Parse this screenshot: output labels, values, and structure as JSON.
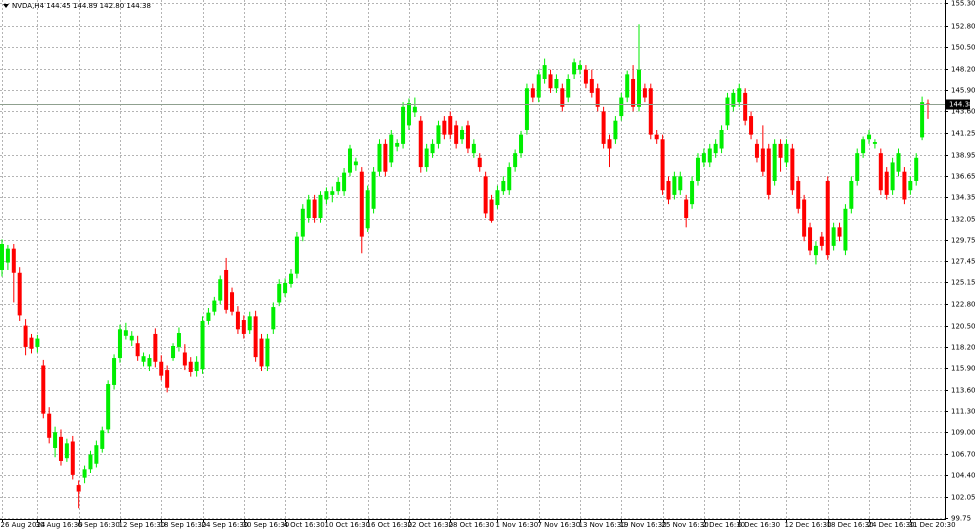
{
  "chart_data": {
    "type": "candlestick",
    "title": "NVDA,H4 144.45 144.89 142.80 144.38",
    "up_color": "#00ee00",
    "down_color": "#ff0000",
    "grid": true,
    "last_price": {
      "value": 144.38,
      "label": "144.38"
    },
    "ylim": [
      99.64,
      155.62
    ],
    "yticks": [
      {
        "value": 155.3,
        "label": "155.30"
      },
      {
        "value": 152.8,
        "label": "152.80"
      },
      {
        "value": 150.5,
        "label": "150.50"
      },
      {
        "value": 148.2,
        "label": "148.20"
      },
      {
        "value": 145.9,
        "label": "145.90"
      },
      {
        "value": 143.6,
        "label": "143.60"
      },
      141.25,
      {
        "value": 138.95,
        "label": "138.95"
      },
      136.65,
      134.35,
      {
        "value": 132.05,
        "label": "132.05"
      },
      129.75,
      127.45,
      125.15,
      {
        "value": 122.8,
        "label": "122.80"
      },
      {
        "value": 120.5,
        "label": "120.50"
      },
      {
        "value": 118.2,
        "label": "118.20"
      },
      {
        "value": 115.9,
        "label": "115.90"
      },
      {
        "value": 113.6,
        "label": "113.60"
      },
      {
        "value": 111.3,
        "label": "111.30"
      },
      {
        "value": 109,
        "label": "109.00"
      },
      {
        "value": 106.7,
        "label": "106.70"
      },
      {
        "value": 104.4,
        "label": "104.40"
      },
      {
        "value": 102.05,
        "label": "102.05"
      },
      99.75
    ],
    "categories": [
      "26 Aug 2024",
      null,
      null,
      null,
      null,
      null,
      "30 Aug 16:30",
      null,
      null,
      null,
      null,
      null,
      null,
      "6 Sep 16:30",
      null,
      null,
      null,
      null,
      null,
      null,
      "12 Sep 16:30",
      null,
      null,
      null,
      null,
      null,
      null,
      "18 Sep 16:30",
      null,
      null,
      null,
      null,
      null,
      null,
      "24 Sep 16:30",
      null,
      null,
      null,
      null,
      null,
      null,
      "30 Sep 16:30",
      null,
      null,
      null,
      null,
      null,
      null,
      "4 Oct 16:30",
      null,
      null,
      null,
      null,
      null,
      null,
      "10 Oct 16:30",
      null,
      null,
      null,
      null,
      null,
      null,
      "16 Oct 16:30",
      null,
      null,
      null,
      null,
      null,
      null,
      "22 Oct 16:30",
      null,
      null,
      null,
      null,
      null,
      null,
      "28 Oct 16:30",
      null,
      null,
      null,
      null,
      null,
      null,
      null,
      "1 Nov 16:30",
      null,
      null,
      null,
      null,
      null,
      null,
      "7 Nov 16:30",
      null,
      null,
      null,
      null,
      null,
      null,
      "13 Nov 16:30",
      null,
      null,
      null,
      null,
      null,
      null,
      "19 Nov 16:30",
      null,
      null,
      null,
      null,
      null,
      null,
      "25 Nov 16:30",
      null,
      null,
      null,
      null,
      null,
      null,
      "2 Dec 16:30",
      null,
      null,
      null,
      null,
      null,
      "6 Dec 16:30",
      null,
      null,
      null,
      null,
      null,
      null,
      null,
      "12 Dec 16:30",
      null,
      null,
      null,
      null,
      null,
      null,
      "18 Dec 16:30",
      null,
      null,
      null,
      null,
      null,
      null,
      "24 Dec 16:30",
      null,
      null,
      null,
      null,
      null,
      null,
      "31 Dec 20:30",
      null,
      null,
      null
    ],
    "open": [
      126.5,
      127.3,
      128.8,
      126.2,
      120.5,
      119.2,
      118.2,
      116.2,
      111.0,
      107.3,
      108.5,
      106.2,
      108.0,
      103.3,
      104.1,
      105.0,
      105.6,
      107.2,
      109.3,
      114.1,
      117.0,
      119.4,
      118.9,
      118.6,
      116.6,
      116.1,
      119.6,
      116.6,
      115.7,
      117.0,
      118.2,
      117.6,
      116.6,
      115.6,
      115.8,
      121.0,
      122.0,
      123.2,
      126.5,
      124.1,
      122.0,
      121.1,
      120.0,
      121.5,
      119.1,
      116.1,
      120.1,
      123.0,
      124.0,
      125.0,
      126.1,
      130.1,
      132.1,
      134.1,
      132.1,
      134.1,
      134.6,
      135.0,
      135.0,
      137.0,
      137.8,
      137.1,
      131.0,
      133.1,
      137.1,
      140.1,
      138.1,
      139.8,
      140.1,
      142.1,
      143.5,
      142.6,
      137.6,
      139.1,
      140.1,
      142.6,
      143.1,
      142.1,
      140.6,
      142.1,
      139.1,
      138.6,
      136.6,
      134.1,
      133.5,
      135.0,
      135.1,
      137.6,
      139.1,
      141.6,
      146.1,
      145.1,
      147.1,
      147.6,
      146.1,
      146.1,
      145.1,
      147.6,
      148.1,
      148.1,
      147.1,
      146.1,
      143.6,
      140.6,
      140.6,
      143.1,
      145.1,
      147.1,
      144.1,
      146.1,
      146.1,
      141.1,
      140.6,
      136.1,
      134.6,
      135.1,
      134.1,
      133.6,
      136.1,
      138.1,
      138.1,
      139.1,
      139.6,
      142.1,
      144.1,
      144.6,
      145.6,
      143.1,
      140.1,
      139.6,
      139.6,
      136.1,
      140.1,
      138.1,
      139.6,
      136.1,
      134.1,
      131.1,
      128.1,
      130.1,
      136.1,
      129.1,
      131.1,
      128.6,
      133.1,
      136.1,
      139.1,
      140.6,
      140.1,
      139.1,
      137.1,
      135.1,
      137.1,
      137.1,
      135.1,
      136.1,
      140.8,
      144.45
    ],
    "high": [
      129.8,
      129.2,
      129.3,
      126.8,
      121.2,
      119.6,
      119.5,
      116.8,
      111.7,
      109.6,
      109.3,
      108.3,
      108.6,
      103.8,
      105.4,
      107.0,
      108.1,
      109.6,
      114.6,
      117.4,
      120.6,
      120.8,
      119.9,
      119.4,
      117.6,
      117.4,
      120.2,
      117.3,
      116.2,
      118.6,
      120.3,
      118.5,
      117.1,
      117.2,
      121.5,
      122.4,
      123.6,
      125.9,
      127.8,
      124.6,
      122.6,
      121.6,
      122.0,
      122.1,
      119.6,
      119.6,
      123.0,
      125.5,
      125.6,
      126.6,
      130.6,
      133.6,
      134.6,
      134.6,
      135.0,
      135.4,
      135.5,
      136.5,
      137.5,
      140.0,
      138.6,
      137.6,
      135.6,
      137.6,
      140.6,
      140.6,
      141.6,
      140.6,
      144.6,
      145.0,
      145.1,
      143.1,
      140.1,
      140.6,
      142.6,
      143.1,
      143.6,
      142.6,
      142.0,
      142.6,
      140.6,
      139.1,
      137.1,
      134.6,
      135.6,
      136.6,
      138.1,
      139.5,
      141.5,
      146.6,
      146.6,
      148.1,
      149.3,
      148.1,
      147.6,
      146.6,
      147.6,
      149.3,
      149.1,
      148.6,
      148.1,
      146.6,
      144.1,
      141.1,
      143.1,
      145.6,
      148.0,
      148.6,
      153.0,
      146.6,
      146.6,
      141.6,
      141.1,
      136.6,
      137.1,
      137.1,
      134.6,
      136.6,
      139.1,
      139.6,
      140.1,
      140.6,
      142.1,
      145.6,
      146.0,
      146.6,
      146.1,
      143.6,
      140.6,
      142.1,
      140.1,
      140.6,
      140.6,
      140.6,
      140.1,
      136.6,
      134.6,
      131.6,
      129.6,
      130.6,
      136.6,
      131.6,
      131.6,
      133.6,
      136.6,
      139.6,
      140.9,
      141.6,
      140.6,
      139.6,
      137.6,
      138.6,
      139.6,
      137.6,
      136.6,
      139.1,
      145.2,
      144.89
    ],
    "low": [
      125.8,
      126.5,
      123.0,
      121.0,
      117.3,
      117.5,
      117.6,
      110.5,
      107.8,
      106.3,
      105.4,
      105.8,
      103.9,
      100.8,
      103.5,
      104.6,
      105.2,
      106.8,
      108.9,
      113.6,
      116.5,
      119.0,
      118.3,
      116.7,
      116.1,
      115.6,
      116.0,
      114.6,
      113.3,
      116.7,
      117.7,
      115.7,
      115.0,
      115.0,
      115.3,
      120.6,
      121.6,
      122.8,
      121.8,
      121.6,
      119.6,
      119.1,
      119.6,
      116.6,
      115.6,
      115.6,
      119.6,
      122.6,
      123.6,
      124.6,
      125.6,
      129.6,
      131.6,
      131.6,
      131.6,
      133.6,
      133.8,
      134.6,
      134.5,
      136.6,
      137.2,
      128.3,
      130.6,
      132.6,
      136.6,
      136.6,
      137.6,
      139.3,
      139.6,
      141.6,
      143.0,
      137.0,
      137.1,
      138.6,
      139.6,
      140.6,
      140.6,
      139.6,
      140.1,
      139.1,
      138.6,
      137.1,
      132.1,
      131.6,
      133.1,
      134.6,
      134.6,
      137.1,
      138.6,
      141.1,
      144.6,
      144.6,
      146.6,
      145.6,
      145.6,
      143.6,
      144.6,
      147.1,
      147.6,
      146.1,
      145.1,
      143.6,
      139.6,
      137.6,
      140.1,
      142.6,
      144.6,
      143.6,
      143.6,
      144.6,
      140.6,
      140.1,
      134.6,
      133.6,
      134.1,
      134.6,
      131.1,
      133.1,
      135.6,
      137.6,
      137.6,
      138.6,
      139.1,
      141.6,
      143.6,
      144.1,
      142.1,
      140.6,
      138.1,
      136.6,
      134.1,
      135.6,
      137.1,
      137.6,
      134.6,
      132.6,
      129.6,
      128.1,
      127.1,
      128.6,
      127.6,
      128.6,
      129.6,
      128.1,
      132.6,
      135.6,
      138.6,
      140.1,
      139.6,
      134.6,
      134.1,
      134.6,
      136.6,
      133.6,
      134.6,
      135.6,
      140.5,
      142.8
    ],
    "close": [
      129.3,
      128.8,
      126.2,
      121.6,
      118.2,
      118.0,
      119.1,
      111.0,
      108.4,
      109.0,
      105.9,
      107.8,
      104.4,
      102.6,
      105.0,
      106.6,
      107.6,
      109.2,
      114.2,
      117.0,
      120.1,
      120.0,
      119.4,
      117.2,
      117.2,
      117.0,
      116.6,
      115.1,
      113.8,
      118.3,
      119.7,
      116.2,
      115.5,
      116.6,
      121.0,
      121.9,
      123.2,
      125.5,
      122.2,
      122.0,
      120.1,
      119.6,
      121.5,
      117.1,
      116.1,
      119.1,
      122.5,
      125.0,
      125.1,
      126.1,
      130.1,
      133.1,
      134.1,
      132.1,
      134.6,
      135.0,
      135.0,
      136.0,
      137.0,
      139.6,
      138.2,
      130.1,
      135.1,
      137.1,
      140.1,
      137.1,
      141.1,
      140.2,
      144.1,
      144.5,
      144.1,
      137.6,
      139.6,
      140.1,
      142.1,
      141.1,
      141.1,
      140.1,
      141.6,
      139.6,
      140.1,
      137.6,
      132.6,
      131.8,
      135.1,
      136.1,
      137.6,
      139.1,
      141.1,
      146.1,
      145.1,
      147.6,
      148.6,
      146.1,
      147.1,
      144.1,
      147.1,
      148.9,
      148.6,
      146.6,
      145.6,
      144.1,
      140.1,
      139.6,
      142.6,
      145.1,
      147.6,
      144.1,
      148.1,
      145.1,
      141.1,
      140.6,
      135.1,
      134.1,
      136.6,
      136.6,
      132.1,
      136.1,
      138.6,
      139.1,
      139.6,
      140.1,
      141.6,
      145.1,
      145.6,
      146.1,
      142.6,
      141.1,
      138.6,
      137.1,
      134.6,
      140.1,
      138.6,
      140.1,
      135.1,
      133.1,
      130.1,
      128.6,
      129.1,
      129.1,
      128.1,
      131.1,
      130.1,
      133.1,
      136.1,
      139.1,
      140.6,
      141.1,
      140.3,
      135.1,
      134.6,
      138.1,
      139.1,
      134.1,
      136.1,
      138.6,
      144.6,
      144.38
    ]
  }
}
